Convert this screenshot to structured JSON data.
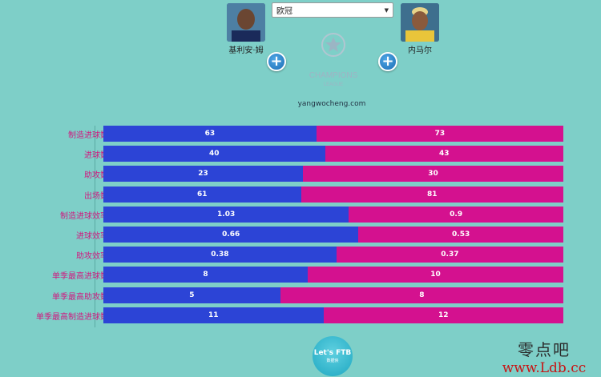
{
  "header": {
    "league_selected": "欧冠",
    "site_text": "yangwocheng.com"
  },
  "players": [
    {
      "name": "基利安·姆",
      "color": "#2c44d6"
    },
    {
      "name": "内马尔",
      "color": "#d4118f"
    }
  ],
  "chart_data": {
    "type": "bar",
    "categories": [
      "制造进球数",
      "进球数",
      "助攻数",
      "出场数",
      "制造进球效率",
      "进球效率",
      "助攻效率",
      "单季最高进球数",
      "单季最高助攻数",
      "单季最高制造进球数"
    ],
    "series": [
      {
        "name": "基利安·姆",
        "values": [
          63,
          40,
          23,
          61,
          1.03,
          0.66,
          0.38,
          8,
          5,
          11
        ]
      },
      {
        "name": "内马尔",
        "values": [
          73,
          43,
          30,
          81,
          0.9,
          0.53,
          0.37,
          10,
          8,
          12
        ]
      }
    ],
    "labels_a": [
      "63",
      "40",
      "23",
      "61",
      "1.03",
      "0.66",
      "0.38",
      "8",
      "5",
      "11"
    ],
    "labels_b": [
      "73",
      "43",
      "30",
      "81",
      "0.9",
      "0.53",
      "0.37",
      "10",
      "8",
      "12"
    ]
  },
  "logo_text": {
    "champions": "CHAMPIONS",
    "league": "LEAGUE"
  },
  "badge": {
    "title": "Let's FTB",
    "subtitle": "数据侠"
  },
  "watermark": {
    "line1": "零点吧",
    "line2": "www.Ldb.cc"
  }
}
